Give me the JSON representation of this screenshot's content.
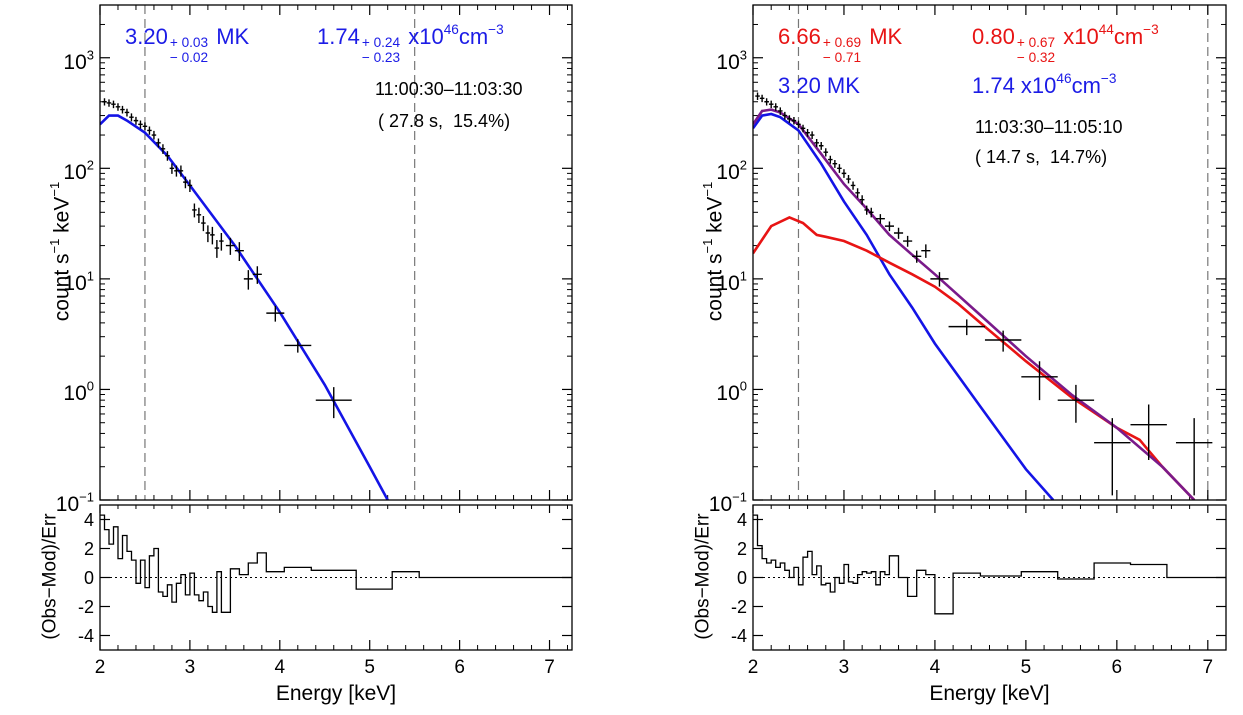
{
  "chart_data": [
    {
      "type": "spectrum",
      "xlabel": "Energy [keV]",
      "ylabel": [
        {
          "t": "count s"
        },
        {
          "sup": "−1"
        },
        {
          "t": " keV"
        },
        {
          "sup": "−1"
        }
      ],
      "residual_label": "(Obs−Mod)/Err",
      "xlim": [
        2,
        7.25
      ],
      "xticks": [
        2,
        3,
        4,
        5,
        6,
        7
      ],
      "ylim": [
        0.1,
        3000
      ],
      "log_y": true,
      "yticks": [
        {
          "value": 0.1,
          "label": "10",
          "exponent": "−1"
        },
        {
          "value": 1,
          "label": "10",
          "exponent": "0"
        },
        {
          "value": 10,
          "label": "10",
          "exponent": "1"
        },
        {
          "value": 100,
          "label": "10",
          "exponent": "2"
        },
        {
          "value": 1000,
          "label": "10",
          "exponent": "3"
        }
      ],
      "residual_ylim": [
        -5,
        5
      ],
      "residual_yticks": [
        -4,
        -2,
        0,
        2,
        4
      ],
      "residual_reference": 0,
      "vlines": [
        2.5,
        5.5
      ],
      "observed": {
        "color": "#000000",
        "x": [
          2.05,
          2.1,
          2.15,
          2.2,
          2.25,
          2.3,
          2.35,
          2.4,
          2.45,
          2.5,
          2.55,
          2.6,
          2.65,
          2.7,
          2.75,
          2.8,
          2.85,
          2.9,
          2.95,
          3.0,
          3.05,
          3.1,
          3.15,
          3.2,
          3.25,
          3.3,
          3.35,
          3.45,
          3.55,
          3.65,
          3.75,
          3.95,
          4.2,
          4.6
        ],
        "values": [
          400,
          390,
          380,
          360,
          340,
          320,
          290,
          270,
          250,
          240,
          220,
          200,
          170,
          150,
          130,
          100,
          95,
          95,
          75,
          70,
          42,
          38,
          32,
          26,
          25,
          19,
          22,
          20,
          18,
          10,
          11,
          4.9,
          2.5,
          0.8
        ],
        "xerr": [
          0.025,
          0.025,
          0.025,
          0.025,
          0.025,
          0.025,
          0.025,
          0.025,
          0.025,
          0.025,
          0.025,
          0.025,
          0.025,
          0.025,
          0.025,
          0.025,
          0.025,
          0.025,
          0.025,
          0.025,
          0.025,
          0.025,
          0.025,
          0.025,
          0.025,
          0.025,
          0.025,
          0.05,
          0.05,
          0.05,
          0.05,
          0.1,
          0.15,
          0.2
        ],
        "yerr": [
          30,
          30,
          30,
          28,
          27,
          26,
          24,
          22,
          21,
          20,
          19,
          18,
          16,
          15,
          13,
          11,
          11,
          11,
          9,
          9,
          6,
          6,
          5,
          4.5,
          4.5,
          3.5,
          4,
          3.5,
          3.5,
          2,
          2,
          0.8,
          0.35,
          0.25
        ]
      },
      "models": [
        {
          "color": "#1414e6",
          "x": [
            2.0,
            2.1,
            2.2,
            2.3,
            2.5,
            2.75,
            3.0,
            3.5,
            4.0,
            4.5,
            5.0,
            5.2
          ],
          "values": [
            250,
            300,
            300,
            270,
            210,
            130,
            70,
            20,
            5,
            1.1,
            0.2,
            0.1
          ]
        }
      ],
      "residuals": {
        "color": "#000000",
        "bins": [
          2.0,
          2.05,
          2.1,
          2.15,
          2.2,
          2.25,
          2.3,
          2.35,
          2.4,
          2.45,
          2.5,
          2.55,
          2.6,
          2.65,
          2.7,
          2.75,
          2.8,
          2.85,
          2.9,
          2.95,
          3.0,
          3.05,
          3.1,
          3.15,
          3.2,
          3.25,
          3.3,
          3.35,
          3.45,
          3.55,
          3.65,
          3.75,
          3.85,
          4.05,
          4.35,
          4.85,
          5.25,
          5.55,
          7.25
        ],
        "values": [
          4.3,
          3.3,
          2.3,
          3.5,
          1.3,
          2.9,
          1.8,
          1.2,
          -0.4,
          1.2,
          -0.7,
          1.5,
          2.0,
          -1.0,
          -1.3,
          -0.5,
          -1.7,
          -0.4,
          0.2,
          -1.2,
          0.3,
          -1.2,
          -1.6,
          -1.0,
          -2.0,
          -2.4,
          0.4,
          -2.4,
          0.6,
          0.2,
          1.0,
          1.7,
          0.4,
          0.7,
          0.5,
          -0.8,
          0.4,
          0.0
        ]
      },
      "annotations": [
        {
          "color": "#1c1ce6",
          "pieces": [
            {
              "t": "3.20"
            },
            {
              "pm": [
                "+ 0.03",
                "− 0.02"
              ]
            },
            {
              "t": " MK"
            }
          ]
        },
        {
          "color": "#1c1ce6",
          "pieces": [
            {
              "t": "1.74"
            },
            {
              "pm": [
                "+ 0.24",
                "− 0.23"
              ]
            },
            {
              "t": " x10"
            },
            {
              "sup": "46"
            },
            {
              "t": "cm"
            },
            {
              "sup": "−3"
            }
          ]
        },
        {
          "color": "#000000",
          "pieces": [
            {
              "t": "11:00:30–11:03:30"
            }
          ]
        },
        {
          "color": "#000000",
          "pieces": [
            {
              "t": "( 27.8 s,  15.4%)"
            }
          ]
        }
      ]
    },
    {
      "type": "spectrum",
      "xlabel": "Energy [keV]",
      "ylabel": [
        {
          "t": "count s"
        },
        {
          "sup": "−1"
        },
        {
          "t": " keV"
        },
        {
          "sup": "−1"
        }
      ],
      "residual_label": "(Obs−Mod)/Err",
      "xlim": [
        2,
        7.2
      ],
      "xticks": [
        2,
        3,
        4,
        5,
        6,
        7
      ],
      "ylim": [
        0.1,
        3000
      ],
      "log_y": true,
      "yticks": [
        {
          "value": 0.1,
          "label": "10",
          "exponent": "−1"
        },
        {
          "value": 1,
          "label": "10",
          "exponent": "0"
        },
        {
          "value": 10,
          "label": "10",
          "exponent": "1"
        },
        {
          "value": 100,
          "label": "10",
          "exponent": "2"
        },
        {
          "value": 1000,
          "label": "10",
          "exponent": "3"
        }
      ],
      "residual_ylim": [
        -5,
        5
      ],
      "residual_yticks": [
        -4,
        -2,
        0,
        2,
        4
      ],
      "residual_reference": 0,
      "vlines": [
        2.5,
        7.0
      ],
      "observed": {
        "color": "#000000",
        "x": [
          2.05,
          2.1,
          2.15,
          2.2,
          2.25,
          2.3,
          2.35,
          2.4,
          2.45,
          2.5,
          2.55,
          2.6,
          2.65,
          2.7,
          2.75,
          2.8,
          2.85,
          2.9,
          2.95,
          3.0,
          3.05,
          3.1,
          3.15,
          3.2,
          3.25,
          3.3,
          3.4,
          3.5,
          3.6,
          3.7,
          3.8,
          3.9,
          4.05,
          4.35,
          4.75,
          5.15,
          5.55,
          5.95,
          6.35,
          6.85
        ],
        "values": [
          450,
          430,
          400,
          380,
          360,
          330,
          300,
          280,
          270,
          250,
          230,
          210,
          200,
          170,
          160,
          140,
          120,
          110,
          100,
          90,
          80,
          70,
          60,
          52,
          42,
          40,
          35,
          30,
          26,
          22,
          16,
          18,
          10,
          3.7,
          2.8,
          1.3,
          0.8,
          0.33,
          0.48,
          0.33
        ],
        "xerr": [
          0.025,
          0.025,
          0.025,
          0.025,
          0.025,
          0.025,
          0.025,
          0.025,
          0.025,
          0.025,
          0.025,
          0.025,
          0.025,
          0.025,
          0.025,
          0.025,
          0.025,
          0.025,
          0.025,
          0.025,
          0.025,
          0.025,
          0.025,
          0.025,
          0.025,
          0.025,
          0.05,
          0.05,
          0.05,
          0.05,
          0.05,
          0.05,
          0.1,
          0.2,
          0.2,
          0.2,
          0.2,
          0.2,
          0.2,
          0.2
        ],
        "yerr": [
          35,
          33,
          30,
          29,
          28,
          26,
          24,
          22,
          21,
          20,
          18,
          17,
          16,
          14,
          13,
          12,
          10,
          9,
          9,
          8,
          7,
          6,
          6,
          5,
          4,
          4,
          3.5,
          3,
          3,
          2.5,
          2,
          2.5,
          1.5,
          0.6,
          0.6,
          0.5,
          0.3,
          0.22,
          0.25,
          0.22
        ]
      },
      "models": [
        {
          "color": "#1414e6",
          "x": [
            2.0,
            2.1,
            2.2,
            2.3,
            2.5,
            2.75,
            3.0,
            3.25,
            3.5,
            3.75,
            4.0,
            4.5,
            5.0,
            5.3
          ],
          "values": [
            230,
            300,
            310,
            290,
            220,
            110,
            50,
            25,
            11,
            5.5,
            2.6,
            0.7,
            0.19,
            0.1
          ]
        },
        {
          "color": "#e81414",
          "x": [
            2.0,
            2.2,
            2.4,
            2.55,
            2.7,
            2.8,
            3.0,
            3.25,
            3.5,
            3.75,
            4.0,
            4.25,
            4.5,
            5.0,
            5.5,
            6.0,
            6.25,
            6.5,
            6.85
          ],
          "values": [
            17,
            30,
            36,
            32,
            25,
            24,
            22,
            18,
            14,
            11,
            8.5,
            6,
            4,
            1.8,
            0.85,
            0.45,
            0.35,
            0.2,
            0.1
          ]
        },
        {
          "color": "#7a1a8a",
          "x": [
            2.0,
            2.1,
            2.2,
            2.3,
            2.5,
            2.75,
            3.0,
            3.25,
            3.5,
            3.75,
            4.0,
            4.5,
            5.0,
            5.5,
            6.0,
            6.5,
            6.85
          ],
          "values": [
            250,
            330,
            340,
            320,
            250,
            135,
            72,
            43,
            25,
            16.5,
            11,
            4.7,
            2.0,
            0.9,
            0.45,
            0.2,
            0.1
          ]
        }
      ],
      "residuals": {
        "color": "#000000",
        "bins": [
          2.0,
          2.05,
          2.1,
          2.15,
          2.2,
          2.25,
          2.3,
          2.35,
          2.4,
          2.45,
          2.5,
          2.55,
          2.6,
          2.65,
          2.7,
          2.75,
          2.8,
          2.85,
          2.9,
          2.95,
          3.0,
          3.05,
          3.1,
          3.15,
          3.2,
          3.25,
          3.3,
          3.35,
          3.4,
          3.45,
          3.5,
          3.6,
          3.7,
          3.8,
          3.9,
          4.0,
          4.2,
          4.5,
          4.95,
          5.35,
          5.75,
          6.15,
          6.55,
          7.0,
          7.2
        ],
        "values": [
          4.3,
          2.2,
          1.3,
          1.0,
          1.2,
          0.7,
          1.0,
          0.5,
          0.0,
          0.7,
          -0.5,
          1.4,
          1.8,
          0.2,
          0.8,
          -0.5,
          -0.4,
          -1.0,
          0.0,
          -0.4,
          0.9,
          -0.3,
          -0.4,
          0.2,
          0.4,
          0.3,
          0.4,
          -0.5,
          0.4,
          0.2,
          1.5,
          0.0,
          -1.3,
          0.5,
          0.2,
          -2.5,
          0.3,
          0.1,
          0.4,
          -0.1,
          1.0,
          0.9,
          0.0,
          0.0
        ]
      },
      "annotations": [
        {
          "color": "#e81414",
          "pieces": [
            {
              "t": "6.66"
            },
            {
              "pm": [
                "+ 0.69",
                "− 0.71"
              ]
            },
            {
              "t": " MK"
            }
          ]
        },
        {
          "color": "#e81414",
          "pieces": [
            {
              "t": "0.80"
            },
            {
              "pm": [
                "+ 0.67",
                "− 0.32"
              ]
            },
            {
              "t": " x10"
            },
            {
              "sup": "44"
            },
            {
              "t": "cm"
            },
            {
              "sup": "−3"
            }
          ]
        },
        {
          "color": "#1c1ce6",
          "pieces": [
            {
              "t": "3.20 MK"
            }
          ]
        },
        {
          "color": "#1c1ce6",
          "pieces": [
            {
              "t": "1.74 x10"
            },
            {
              "sup": "46"
            },
            {
              "t": "cm"
            },
            {
              "sup": "−3"
            }
          ]
        },
        {
          "color": "#000000",
          "pieces": [
            {
              "t": "11:03:30–11:05:10"
            }
          ]
        },
        {
          "color": "#000000",
          "pieces": [
            {
              "t": "( 14.7 s,  14.7%)"
            }
          ]
        }
      ]
    }
  ]
}
